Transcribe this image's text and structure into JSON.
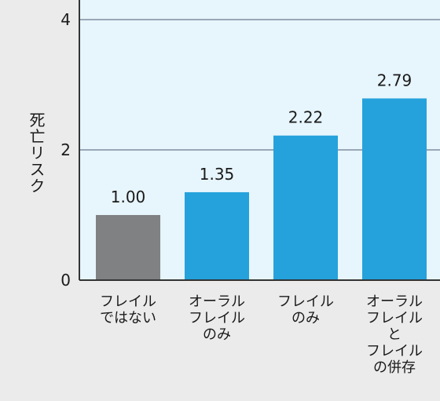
{
  "chart_data": {
    "type": "bar",
    "title": "",
    "xlabel": "",
    "ylabel": "死亡リスク",
    "ylim": [
      0,
      4
    ],
    "yticks": [
      0,
      2,
      4
    ],
    "grid": true,
    "categories": [
      [
        "フレイル",
        "ではない"
      ],
      [
        "オーラル",
        "フレイル",
        "のみ"
      ],
      [
        "フレイル",
        "のみ"
      ],
      [
        "オーラル",
        "フレイル",
        "と",
        "フレイル",
        "の併存"
      ]
    ],
    "values": [
      1.0,
      1.35,
      2.22,
      2.79
    ],
    "value_labels": [
      "1.00",
      "1.35",
      "2.22",
      "2.79"
    ],
    "colors": {
      "reference": "#808183",
      "bar": "#25a2dc",
      "plot_background": "#e7f5fc",
      "outer_background": "#ebebeb",
      "gridline": "#7f8fa0",
      "axis": "#333333"
    }
  }
}
